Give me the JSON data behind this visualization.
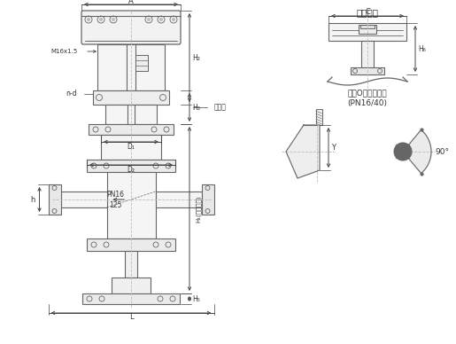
{
  "bg_color": "#ffffff",
  "line_color": "#666666",
  "dim_color": "#444444",
  "text_color": "#333333",
  "figsize": [
    5.15,
    3.88
  ],
  "dpi": 100,
  "title_right1": "顶式手轮",
  "title_right2": "金属O形圆槽尺寸",
  "title_right3": "(PN16/40)",
  "label_A": "A",
  "label_C": "C",
  "label_H2": "H₂",
  "label_H3": "H₃",
  "label_H1": "H₁(保温长度)",
  "label_H5": "H₅",
  "label_H6": "H₆",
  "label_D1": "D₁",
  "label_D2": "D₂",
  "label_h": "h",
  "label_L": "L",
  "label_Y": "Y",
  "label_nd": "n-d",
  "label_M16": "M16x1.5",
  "label_lianban": "连接板",
  "label_PN16": "PN16",
  "label_125": "125",
  "label_90deg": "90°"
}
